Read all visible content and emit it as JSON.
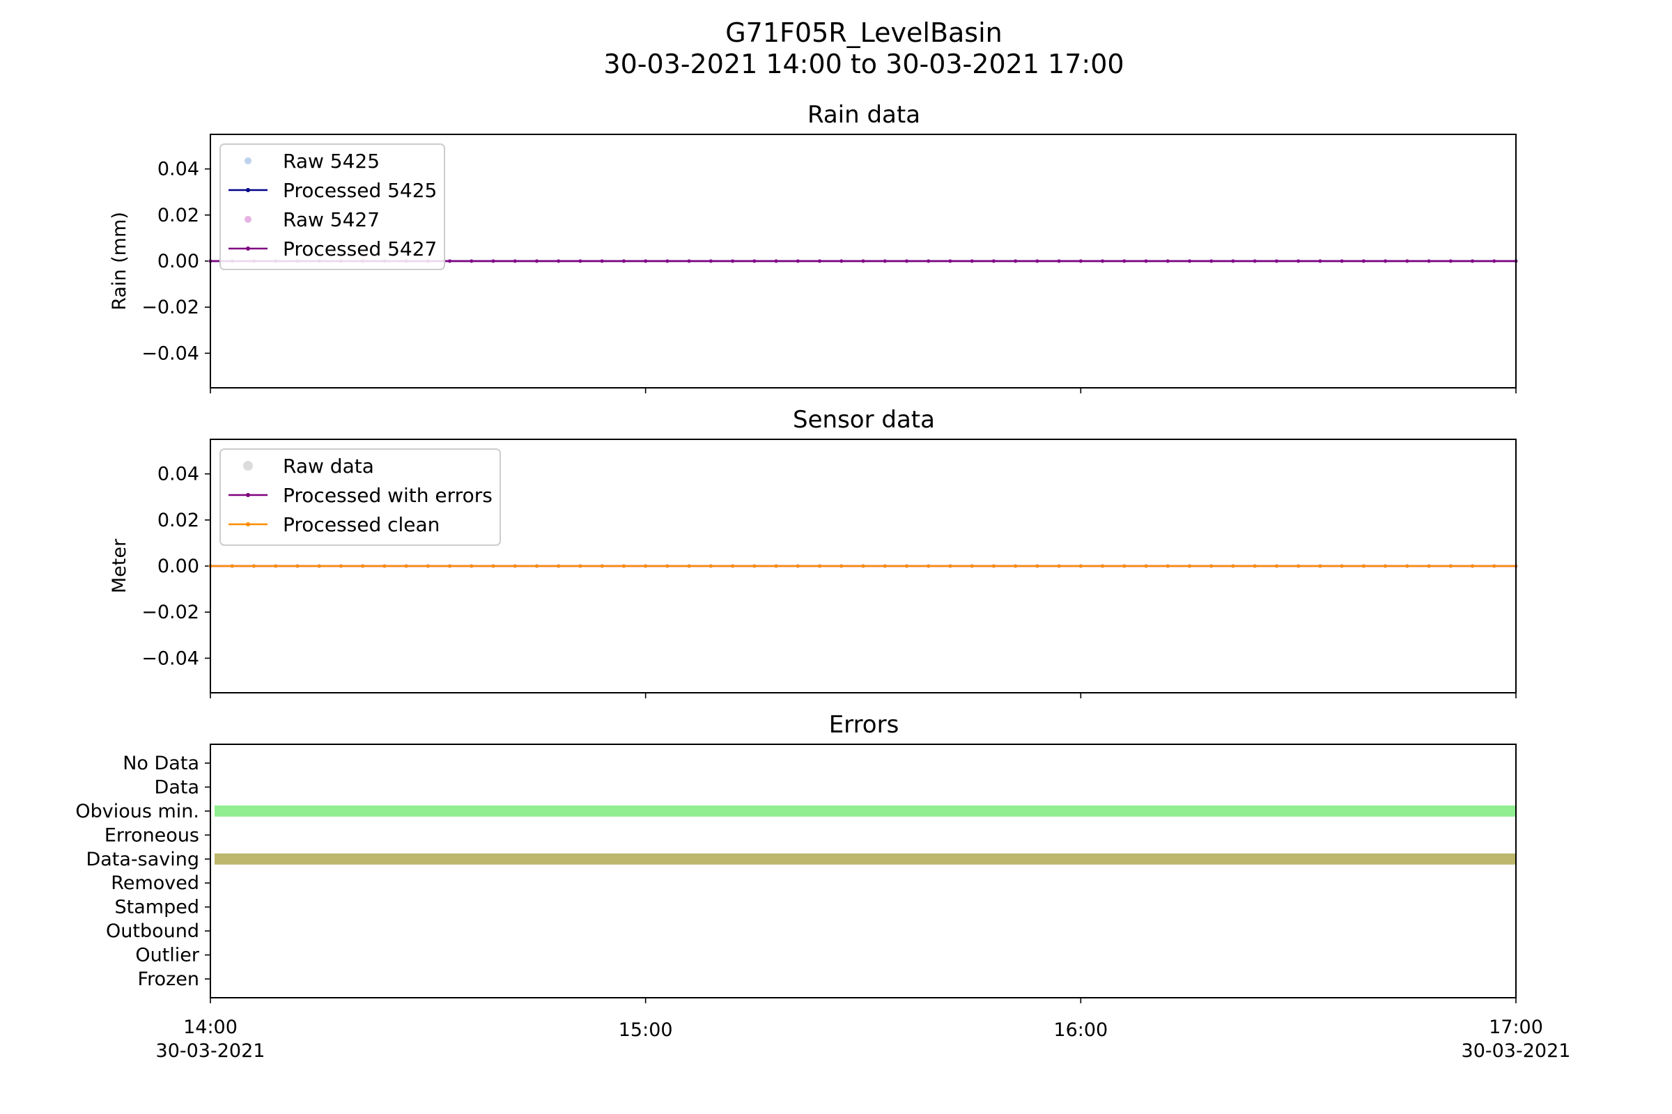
{
  "figure": {
    "title_line1": "G71F05R_LevelBasin",
    "title_line2": "30-03-2021 14:00 to 30-03-2021 17:00"
  },
  "x_axis": {
    "ticks": [
      {
        "line1": "14:00",
        "line2": "30-03-2021"
      },
      {
        "line1": "15:00",
        "line2": ""
      },
      {
        "line1": "16:00",
        "line2": ""
      },
      {
        "line1": "17:00",
        "line2": "30-03-2021"
      }
    ]
  },
  "chart_data": [
    {
      "type": "line",
      "title": "Rain data",
      "ylabel": "Rain (mm)",
      "xlabel": "",
      "x_range": [
        "30-03-2021 14:00",
        "30-03-2021 17:00"
      ],
      "ylim": [
        -0.055,
        0.055
      ],
      "yticks": [
        "0.04",
        "0.02",
        "0.00",
        "−0.02",
        "−0.04"
      ],
      "ytick_values": [
        0.04,
        0.02,
        0.0,
        -0.02,
        -0.04
      ],
      "legend_position": "upper-left",
      "series": [
        {
          "name": "Raw 5425",
          "style": "points",
          "color": "#aec7e8",
          "value": 0.0
        },
        {
          "name": "Processed 5425",
          "style": "line",
          "color": "#00008b",
          "value": 0.0
        },
        {
          "name": "Raw 5427",
          "style": "points",
          "color": "#dda0dd",
          "value": 0.0
        },
        {
          "name": "Processed 5427",
          "style": "line",
          "color": "#800080",
          "value": 0.0
        }
      ]
    },
    {
      "type": "line",
      "title": "Sensor data",
      "ylabel": "Meter",
      "xlabel": "",
      "x_range": [
        "30-03-2021 14:00",
        "30-03-2021 17:00"
      ],
      "ylim": [
        -0.055,
        0.055
      ],
      "yticks": [
        "0.04",
        "0.02",
        "0.00",
        "−0.02",
        "−0.04"
      ],
      "ytick_values": [
        0.04,
        0.02,
        0.0,
        -0.02,
        -0.04
      ],
      "legend_position": "upper-left",
      "series": [
        {
          "name": "Raw data",
          "style": "points",
          "color": "#d3d3d3",
          "value": 0.0
        },
        {
          "name": "Processed with errors",
          "style": "line",
          "color": "#800080",
          "value": 0.0
        },
        {
          "name": "Processed clean",
          "style": "line",
          "color": "#ff8c00",
          "value": 0.0
        }
      ]
    },
    {
      "type": "bar",
      "title": "Errors",
      "ylabel": "",
      "xlabel": "",
      "x_range": [
        "30-03-2021 14:00",
        "30-03-2021 17:00"
      ],
      "categories": [
        "No Data",
        "Data",
        "Obvious min.",
        "Erroneous",
        "Data-saving",
        "Removed",
        "Stamped",
        "Outbound",
        "Outlier",
        "Frozen"
      ],
      "flags": [
        {
          "category": "Obvious min.",
          "start": "30-03-2021 14:00",
          "end": "30-03-2021 17:00",
          "color": "#90ee90"
        },
        {
          "category": "Data-saving",
          "start": "30-03-2021 14:00",
          "end": "30-03-2021 17:00",
          "color": "#bdb76b"
        }
      ]
    }
  ]
}
